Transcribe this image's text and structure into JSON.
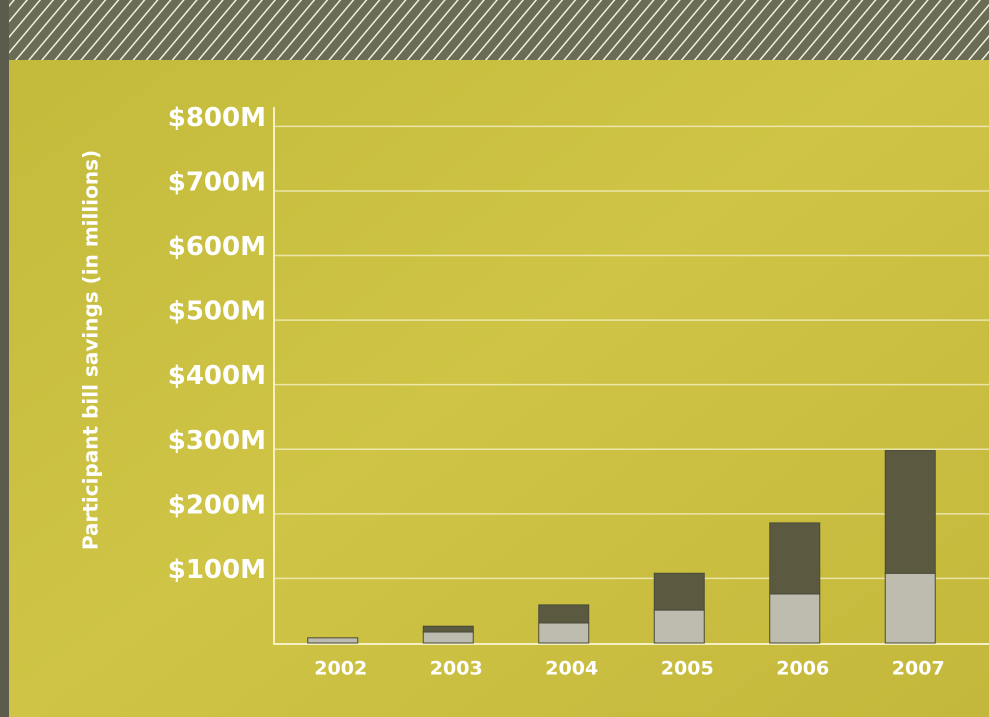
{
  "chart_data": {
    "type": "stacked-bar",
    "y_label": "Participant bill savings (in millions)",
    "categories": [
      "2002",
      "2003",
      "2004",
      "2005",
      "2006",
      "2007"
    ],
    "series": [
      {
        "color": "#bdbcae",
        "values": [
          8,
          17,
          31,
          51,
          76,
          108
        ]
      },
      {
        "color": "#5b5a40",
        "values": [
          0,
          9,
          28,
          57,
          110,
          190
        ]
      }
    ],
    "ylim": [
      0,
      830
    ],
    "yticks": [
      {
        "value": 100,
        "label": "$100M"
      },
      {
        "value": 200,
        "label": "$200M"
      },
      {
        "value": 300,
        "label": "$300M"
      },
      {
        "value": 400,
        "label": "$400M"
      },
      {
        "value": 500,
        "label": "$500M"
      },
      {
        "value": 600,
        "label": "$600M"
      },
      {
        "value": 700,
        "label": "$700M"
      },
      {
        "value": 800,
        "label": "$800M"
      }
    ],
    "grid": true
  }
}
